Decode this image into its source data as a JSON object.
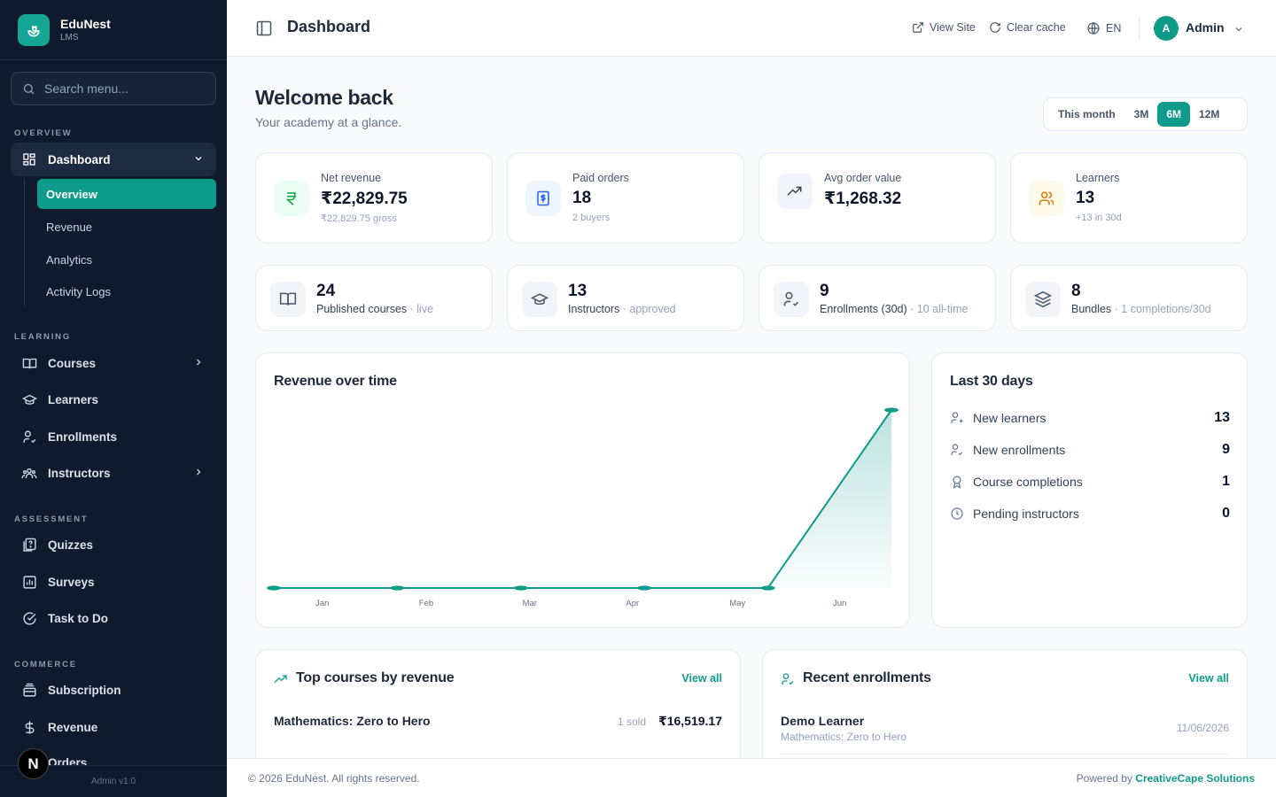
{
  "brand": {
    "name": "EduNest",
    "sub": "LMS"
  },
  "sidebar": {
    "search_placeholder": "Search menu...",
    "sections": {
      "overview": "OVERVIEW",
      "learning": "LEARNING",
      "assessment": "ASSESSMENT",
      "commerce": "COMMERCE"
    },
    "dashboard": "Dashboard",
    "sub_items": [
      "Overview",
      "Revenue",
      "Analytics",
      "Activity Logs"
    ],
    "learning_items": [
      "Courses",
      "Learners",
      "Enrollments",
      "Instructors"
    ],
    "assessment_items": [
      "Quizzes",
      "Surveys",
      "Task to Do"
    ],
    "commerce_items": [
      "Subscription",
      "Revenue",
      "Orders"
    ],
    "version": "Admin v1.0",
    "badge": "N"
  },
  "topbar": {
    "title": "Dashboard",
    "view_site": "View Site",
    "clear_cache": "Clear cache",
    "lang": "EN",
    "avatar": "A",
    "user": "Admin"
  },
  "welcome": {
    "title": "Welcome back",
    "subtitle": "Your academy at a glance."
  },
  "range": {
    "options": [
      "This month",
      "3M",
      "6M",
      "12M"
    ],
    "selected": "6M"
  },
  "stats": [
    {
      "label": "Net revenue",
      "value": "₹22,829.75",
      "sub": "₹22,829.75 gross",
      "icon": "rupee-icon",
      "color": "#16a34a"
    },
    {
      "label": "Paid orders",
      "value": "18",
      "sub": "2 buyers",
      "icon": "receipt-dollar-icon",
      "color": "#2563eb"
    },
    {
      "label": "Avg order value",
      "value": "₹1,268.32",
      "sub": "",
      "icon": "trending-up-icon",
      "color": "#334155"
    },
    {
      "label": "Learners",
      "value": "13",
      "sub": "+13 in 30d",
      "icon": "users-icon",
      "color": "#d97706"
    }
  ],
  "mini_stats": [
    {
      "value": "24",
      "label": "Published courses",
      "muted": "· live",
      "icon": "book-open-icon"
    },
    {
      "value": "13",
      "label": "Instructors",
      "muted": "· approved",
      "icon": "graduation-cap-icon"
    },
    {
      "value": "9",
      "label": "Enrollments (30d)",
      "muted": "· 10 all-time",
      "icon": "user-check-icon"
    },
    {
      "value": "8",
      "label": "Bundles",
      "muted": "· 1 completions/30d",
      "icon": "layers-icon"
    }
  ],
  "revenue_chart": {
    "title": "Revenue over time",
    "chart_data": {
      "type": "area",
      "title": "Revenue over time",
      "categories": [
        "Jan",
        "Feb",
        "Mar",
        "Apr",
        "May",
        "Jun"
      ],
      "values": [
        0,
        0,
        0,
        0,
        0,
        22829.75
      ],
      "ylim": [
        0,
        22829.75
      ],
      "color": "#0f9b89"
    }
  },
  "last30": {
    "title": "Last 30 days",
    "rows": [
      {
        "label": "New learners",
        "value": "13",
        "icon": "user-plus-icon"
      },
      {
        "label": "New enrollments",
        "value": "9",
        "icon": "user-check-icon"
      },
      {
        "label": "Course completions",
        "value": "1",
        "icon": "award-icon"
      },
      {
        "label": "Pending instructors",
        "value": "0",
        "icon": "clock-icon"
      }
    ]
  },
  "top_courses": {
    "title": "Top courses by revenue",
    "view_all": "View all",
    "rows": [
      {
        "name": "Mathematics: Zero to Hero",
        "sold": "1 sold",
        "amount": "₹16,519.17"
      }
    ]
  },
  "recent_enrollments": {
    "title": "Recent enrollments",
    "view_all": "View all",
    "rows": [
      {
        "name": "Demo Learner",
        "course": "Mathematics: Zero to Hero",
        "date": "11/06/2026"
      }
    ]
  },
  "footer": {
    "copy": "© 2026 EduNest. All rights reserved.",
    "powered": "Powered by",
    "company": "CreativeCape Solutions"
  }
}
